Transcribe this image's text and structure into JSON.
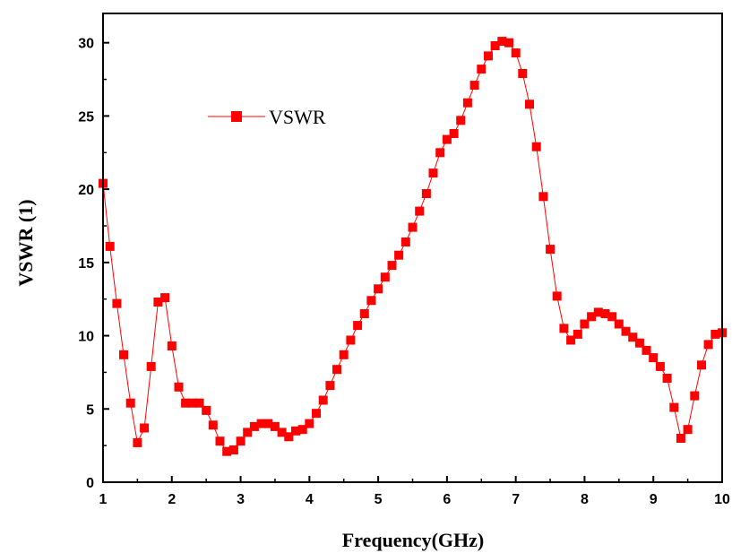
{
  "chart_data": {
    "type": "line",
    "xlabel": "Frequency(GHz)",
    "ylabel": "VSWR (1)",
    "xlim": [
      1,
      10
    ],
    "ylim": [
      0,
      32
    ],
    "xticks": [
      1,
      2,
      3,
      4,
      5,
      6,
      7,
      8,
      9,
      10
    ],
    "yticks": [
      0,
      5,
      10,
      15,
      20,
      25,
      30
    ],
    "grid": false,
    "legend": "top-left",
    "colors": {
      "series": "#ff0000",
      "axis": "#000000"
    },
    "marker": "square",
    "series": [
      {
        "name": "VSWR",
        "x": [
          1.0,
          1.1,
          1.2,
          1.3,
          1.4,
          1.5,
          1.6,
          1.7,
          1.8,
          1.9,
          2.0,
          2.1,
          2.2,
          2.3,
          2.4,
          2.5,
          2.6,
          2.7,
          2.8,
          2.9,
          3.0,
          3.1,
          3.2,
          3.3,
          3.4,
          3.5,
          3.6,
          3.7,
          3.8,
          3.9,
          4.0,
          4.1,
          4.2,
          4.3,
          4.4,
          4.5,
          4.6,
          4.7,
          4.8,
          4.9,
          5.0,
          5.1,
          5.2,
          5.3,
          5.4,
          5.5,
          5.6,
          5.7,
          5.8,
          5.9,
          6.0,
          6.1,
          6.2,
          6.3,
          6.4,
          6.5,
          6.6,
          6.7,
          6.8,
          6.9,
          7.0,
          7.1,
          7.2,
          7.3,
          7.4,
          7.5,
          7.6,
          7.7,
          7.8,
          7.9,
          8.0,
          8.1,
          8.2,
          8.3,
          8.4,
          8.5,
          8.6,
          8.7,
          8.8,
          8.9,
          9.0,
          9.1,
          9.2,
          9.3,
          9.4,
          9.5,
          9.6,
          9.7,
          9.8,
          9.9,
          10.0
        ],
        "values": [
          20.4,
          16.1,
          12.2,
          8.7,
          5.4,
          2.7,
          3.7,
          7.9,
          12.3,
          12.6,
          9.3,
          6.5,
          5.4,
          5.4,
          5.4,
          4.9,
          3.9,
          2.8,
          2.1,
          2.2,
          2.8,
          3.4,
          3.8,
          4.0,
          4.0,
          3.8,
          3.4,
          3.1,
          3.5,
          3.6,
          4.0,
          4.7,
          5.6,
          6.6,
          7.7,
          8.7,
          9.7,
          10.7,
          11.5,
          12.4,
          13.2,
          14.0,
          14.8,
          15.5,
          16.4,
          17.4,
          18.5,
          19.7,
          21.1,
          22.5,
          23.4,
          23.8,
          24.7,
          25.9,
          27.1,
          28.2,
          29.1,
          29.8,
          30.1,
          30.0,
          29.3,
          27.9,
          25.8,
          22.9,
          19.5,
          15.9,
          12.7,
          10.5,
          9.7,
          10.1,
          10.8,
          11.3,
          11.6,
          11.5,
          11.3,
          10.8,
          10.3,
          9.9,
          9.5,
          9.0,
          8.5,
          7.9,
          7.1,
          5.1,
          3.0,
          3.6,
          5.9,
          8.0,
          9.4,
          10.1,
          10.2
        ]
      }
    ]
  }
}
